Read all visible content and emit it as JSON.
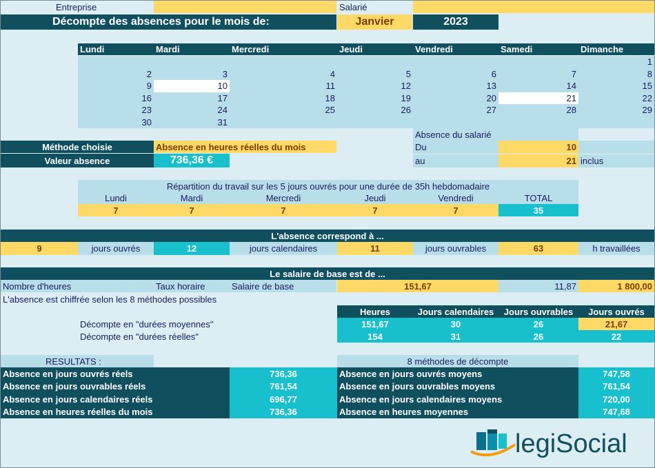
{
  "header": {
    "entreprise_label": "Entreprise",
    "salarie_label": "Salarié",
    "title": "Décompte des absences pour le mois de:",
    "month": "Janvier",
    "year": "2023"
  },
  "calendar": {
    "days": [
      "Lundi",
      "Mardi",
      "Mercredi",
      "Jeudi",
      "Vendredi",
      "Samedi",
      "Dimanche"
    ],
    "weeks": [
      [
        "",
        "",
        "",
        "",
        "",
        "",
        "1"
      ],
      [
        "2",
        "3",
        "4",
        "5",
        "6",
        "7",
        "8"
      ],
      [
        "9",
        "10",
        "11",
        "12",
        "13",
        "14",
        "15"
      ],
      [
        "16",
        "17",
        "18",
        "19",
        "20",
        "21",
        "22"
      ],
      [
        "23",
        "24",
        "25",
        "26",
        "27",
        "28",
        "29"
      ],
      [
        "30",
        "31",
        "",
        "",
        "",
        "",
        ""
      ]
    ]
  },
  "method": {
    "label": "Méthode choisie",
    "value": "Absence en heures réelles du mois",
    "valeur_label": "Valeur absence",
    "valeur": "736,36 €"
  },
  "absence_period": {
    "title": "Absence du salarié",
    "du_label": "Du",
    "du_value": "10",
    "au_label": "au",
    "au_value": "21",
    "inclus": "inclus"
  },
  "repartition": {
    "title": "Répartition du travail sur les 5 jours ouvrés pour une durée de 35h hebdomadaire",
    "headers": [
      "Lundi",
      "Mardi",
      "Mercredi",
      "Jeudi",
      "Vendredi",
      "TOTAL"
    ],
    "values": [
      "7",
      "7",
      "7",
      "7",
      "7",
      "35"
    ]
  },
  "correspond": {
    "title": "L'absence correspond à ...",
    "items": [
      {
        "value": "9",
        "label": "jours ouvrés"
      },
      {
        "value": "12",
        "label": "jours calendaires"
      },
      {
        "value": "11",
        "label": "jours ouvrables"
      },
      {
        "value": "63",
        "label": "h travaillées"
      }
    ]
  },
  "salaire": {
    "title": "Le salaire de base est de ...",
    "heures_label": "Nombre d'heures",
    "taux_label": "Taux horaire",
    "salaire_label": "Salaire de base",
    "heures": "151,67",
    "taux": "11,87",
    "salaire": "1 800,00",
    "note": "L'absence est chiffrée selon les 8 méthodes possibles"
  },
  "decompte": {
    "headers": [
      "Heures",
      "Jours calendaires",
      "Jours ouvrables",
      "Jours ouvrés"
    ],
    "rows": [
      {
        "label": "Décompte en \"durées moyennes\"",
        "values": [
          "151,67",
          "30",
          "26",
          "21,67"
        ]
      },
      {
        "label": "Décompte en \"durées réelles\"",
        "values": [
          "154",
          "31",
          "26",
          "22"
        ]
      }
    ]
  },
  "resultats": {
    "title": "RESULTATS :",
    "methods_title": "8 méthodes de décompte",
    "left": [
      {
        "label": "Absence en jours ouvrés réels",
        "value": "736,36"
      },
      {
        "label": "Absence en jours ouvrables réels",
        "value": "761,54"
      },
      {
        "label": "Absence en jours calendaires réels",
        "value": "696,77"
      },
      {
        "label": "Absence en heures réelles du mois",
        "value": "736,36"
      }
    ],
    "right": [
      {
        "label": "Absence en jours ouvrés moyens",
        "value": "747,58"
      },
      {
        "label": "Absence en jours ouvrables moyens",
        "value": "761,54"
      },
      {
        "label": "Absence en jours calendaires moyens",
        "value": "720,00"
      },
      {
        "label": "Absence en heures moyennes",
        "value": "747,68"
      }
    ]
  },
  "logo": {
    "text": "legiSocial",
    "colors": {
      "accent": "#0a8fb0",
      "orange": "#f39c12",
      "dark": "#0f4f5e"
    }
  }
}
